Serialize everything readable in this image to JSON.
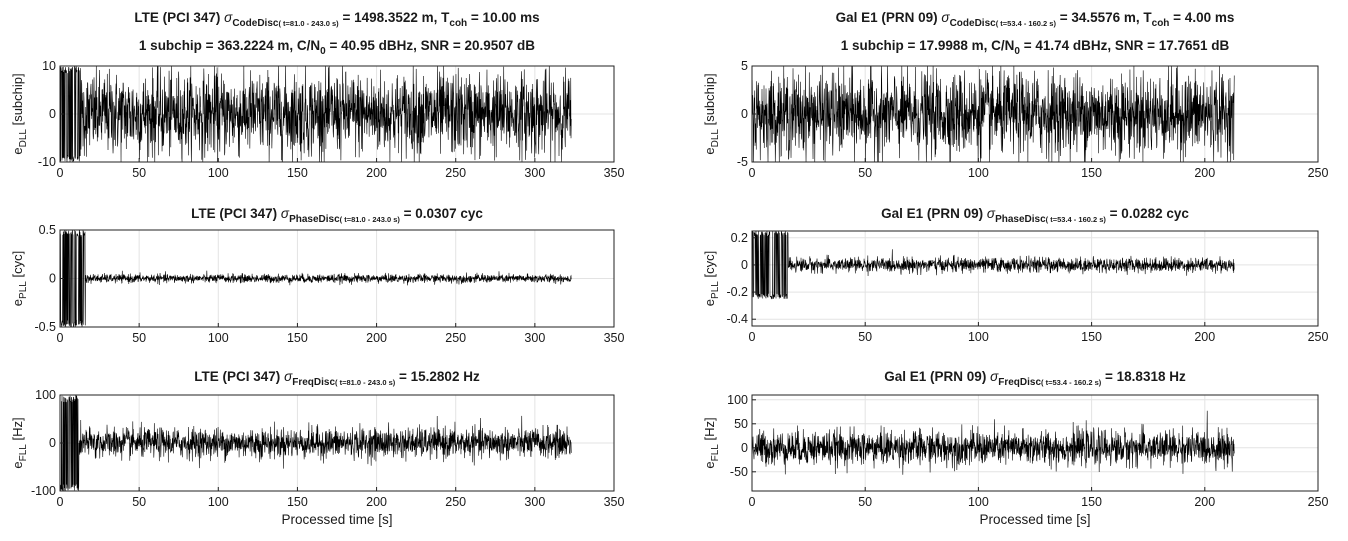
{
  "chart_data": [
    {
      "type": "line",
      "position": "top-left",
      "title_line1": {
        "head": "LTE (PCI 347) ",
        "sigma": "σ",
        "sub": "CodeDisc",
        "subsmall": "( t=81.0 - 243.0 s)",
        "tail1": " = 1498.3522 m, T",
        "sub2": "coh",
        "tail2": " = 10.00 ms"
      },
      "title_line2": {
        "head": "1 subchip = 363.2224 m, C/N",
        "sub": "0",
        "tail": " = 40.95 dBHz, SNR = 20.9507 dB"
      },
      "ylabel": {
        "main": "e",
        "sub": "DLL",
        "unit": " [subchip]"
      },
      "xlabel": "",
      "xlim": [
        0,
        350
      ],
      "ylim": [
        -10,
        10
      ],
      "xticks": [
        0,
        50,
        100,
        150,
        200,
        250,
        300,
        350
      ],
      "yticks": [
        -10,
        0,
        10
      ],
      "grid": true,
      "series": [
        {
          "x_end": 323,
          "transient_end": 13,
          "steady_amplitude": 9.6,
          "transient_amplitude": 10
        }
      ]
    },
    {
      "type": "line",
      "position": "top-right",
      "title_line1": {
        "head": "Gal E1 (PRN 09) ",
        "sigma": "σ",
        "sub": "CodeDisc",
        "subsmall": "( t=53.4 - 160.2 s)",
        "tail1": " = 34.5576 m, T",
        "sub2": "coh",
        "tail2": " = 4.00 ms"
      },
      "title_line2": {
        "head": "1 subchip = 17.9988 m, C/N",
        "sub": "0",
        "tail": " = 41.74 dBHz, SNR = 17.7651 dB"
      },
      "ylabel": {
        "main": "e",
        "sub": "DLL",
        "unit": " [subchip]"
      },
      "xlabel": "",
      "xlim": [
        0,
        250
      ],
      "ylim": [
        -5,
        5
      ],
      "xticks": [
        0,
        50,
        100,
        150,
        200,
        250
      ],
      "yticks": [
        -5,
        0,
        5
      ],
      "grid": true,
      "series": [
        {
          "x_end": 213,
          "transient_end": 0,
          "steady_amplitude": 4.8,
          "transient_amplitude": 5
        }
      ]
    },
    {
      "type": "line",
      "position": "middle-left",
      "title_line1": {
        "head": "LTE (PCI 347) ",
        "sigma": "σ",
        "sub": "PhaseDisc",
        "subsmall": "( t=81.0 - 243.0 s)",
        "tail1": " = 0.0307 cyc",
        "sub2": "",
        "tail2": ""
      },
      "ylabel": {
        "main": "e",
        "sub": "PLL",
        "unit": " [cyc]"
      },
      "xlabel": "",
      "xlim": [
        0,
        350
      ],
      "ylim": [
        -0.5,
        0.5
      ],
      "xticks": [
        0,
        50,
        100,
        150,
        200,
        250,
        300,
        350
      ],
      "yticks": [
        -0.5,
        0,
        0.5
      ],
      "grid": true,
      "series": [
        {
          "x_end": 323,
          "transient_end": 16,
          "steady_amplitude": 0.05,
          "transient_amplitude": 0.5
        }
      ]
    },
    {
      "type": "line",
      "position": "middle-right",
      "title_line1": {
        "head": "Gal E1 (PRN 09) ",
        "sigma": "σ",
        "sub": "PhaseDisc",
        "subsmall": "( t=53.4 - 160.2 s)",
        "tail1": " = 0.0282 cyc",
        "sub2": "",
        "tail2": ""
      },
      "ylabel": {
        "main": "e",
        "sub": "PLL",
        "unit": " [cyc]"
      },
      "xlabel": "",
      "xlim": [
        0,
        250
      ],
      "ylim": [
        -0.45,
        0.25
      ],
      "xticks": [
        0,
        50,
        100,
        150,
        200,
        250
      ],
      "yticks": [
        -0.4,
        -0.2,
        0,
        0.2
      ],
      "grid": true,
      "series": [
        {
          "x_end": 213,
          "transient_end": 16,
          "steady_amplitude": 0.06,
          "transient_amplitude": 0.25
        }
      ]
    },
    {
      "type": "line",
      "position": "bottom-left",
      "title_line1": {
        "head": "LTE (PCI 347) ",
        "sigma": "σ",
        "sub": "FreqDisc",
        "subsmall": "( t=81.0 - 243.0 s)",
        "tail1": " = 15.2802 Hz",
        "sub2": "",
        "tail2": ""
      },
      "ylabel": {
        "main": "e",
        "sub": "FLL",
        "unit": " [Hz]"
      },
      "xlabel": "Processed time [s]",
      "xlim": [
        0,
        350
      ],
      "ylim": [
        -100,
        100
      ],
      "xticks": [
        0,
        50,
        100,
        150,
        200,
        250,
        300,
        350
      ],
      "yticks": [
        -100,
        0,
        100
      ],
      "grid": true,
      "series": [
        {
          "x_end": 323,
          "transient_end": 12,
          "steady_amplitude": 35,
          "transient_amplitude": 100
        }
      ]
    },
    {
      "type": "line",
      "position": "bottom-right",
      "title_line1": {
        "head": "Gal E1 (PRN 09) ",
        "sigma": "σ",
        "sub": "FreqDisc",
        "subsmall": "( t=53.4 - 160.2 s)",
        "tail1": " = 18.8318 Hz",
        "sub2": "",
        "tail2": ""
      },
      "ylabel": {
        "main": "e",
        "sub": "FLL",
        "unit": " [Hz]"
      },
      "xlabel": "Processed time [s]",
      "xlim": [
        0,
        250
      ],
      "ylim": [
        -90,
        110
      ],
      "xticks": [
        0,
        50,
        100,
        150,
        200,
        250
      ],
      "yticks": [
        -50,
        0,
        50,
        100
      ],
      "grid": true,
      "series": [
        {
          "x_end": 213,
          "transient_end": 0,
          "steady_amplitude": 40,
          "transient_amplitude": 90
        }
      ]
    }
  ]
}
